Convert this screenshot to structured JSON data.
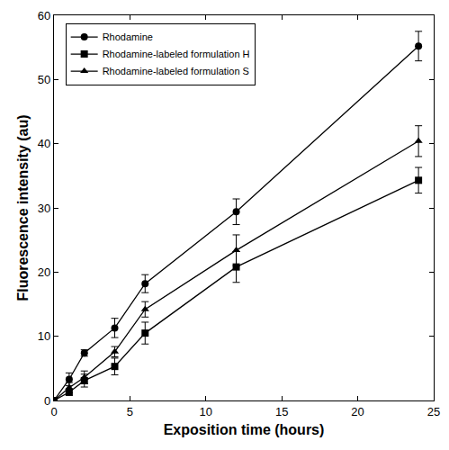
{
  "chart_data": {
    "type": "line",
    "x_label": "Exposition time (hours)",
    "y_label": "Fluorescence intensity (au)",
    "x": [
      0,
      1,
      2,
      4,
      6,
      12,
      24
    ],
    "series": [
      {
        "name": "Rhodamine",
        "color": "#000000",
        "marker": "circle",
        "values": [
          0,
          3.3,
          7.4,
          11.3,
          18.2,
          29.4,
          55.2
        ],
        "errors": [
          0,
          1.0,
          0.5,
          1.5,
          1.4,
          2.0,
          2.3
        ]
      },
      {
        "name": "Rhodamine-labeled formulation H",
        "color": "#000000",
        "marker": "square",
        "values": [
          0,
          1.3,
          3.1,
          5.3,
          10.5,
          20.8,
          34.3
        ],
        "errors": [
          0,
          0.5,
          1.0,
          1.3,
          1.7,
          2.4,
          2.0
        ]
      },
      {
        "name": "Rhodamine-labeled formulation S",
        "color": "#000000",
        "marker": "triangle",
        "values": [
          0,
          2.0,
          3.6,
          7.6,
          14.2,
          23.4,
          40.4
        ],
        "errors": [
          0,
          0.8,
          1.0,
          0.8,
          1.2,
          2.4,
          2.4
        ]
      }
    ],
    "xlim": [
      0,
      25
    ],
    "xticks": [
      0,
      5,
      10,
      15,
      20,
      25
    ],
    "ylim": [
      0,
      60
    ],
    "yticks": [
      0,
      10,
      20,
      30,
      40,
      50,
      60
    ],
    "grid": false,
    "legend": "top-left"
  }
}
